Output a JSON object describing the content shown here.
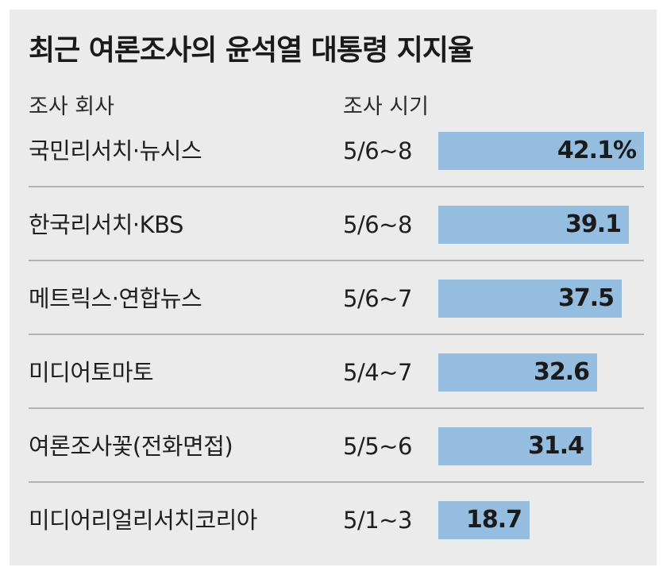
{
  "chart_data": {
    "type": "bar",
    "title": "최근 여론조사의 윤석열 대통령 지지율",
    "columns": {
      "company": "조사 회사",
      "period": "조사 시기"
    },
    "rows": [
      {
        "company": "국민리서치·뉴시스",
        "period": "5/6~8",
        "value": 42.1,
        "label": "42.1%"
      },
      {
        "company": "한국리서치·KBS",
        "period": "5/6~8",
        "value": 39.1,
        "label": "39.1"
      },
      {
        "company": "메트릭스·연합뉴스",
        "period": "5/6~7",
        "value": 37.5,
        "label": "37.5"
      },
      {
        "company": "미디어토마토",
        "period": "5/4~7",
        "value": 32.6,
        "label": "32.6"
      },
      {
        "company": "여론조사꽃(전화면접)",
        "period": "5/5~6",
        "value": 31.4,
        "label": "31.4"
      },
      {
        "company": "미디어리얼리서치코리아",
        "period": "5/1~3",
        "value": 18.7,
        "label": "18.7"
      }
    ],
    "bar_color": "#94bde0",
    "background": "#ebebeb"
  }
}
